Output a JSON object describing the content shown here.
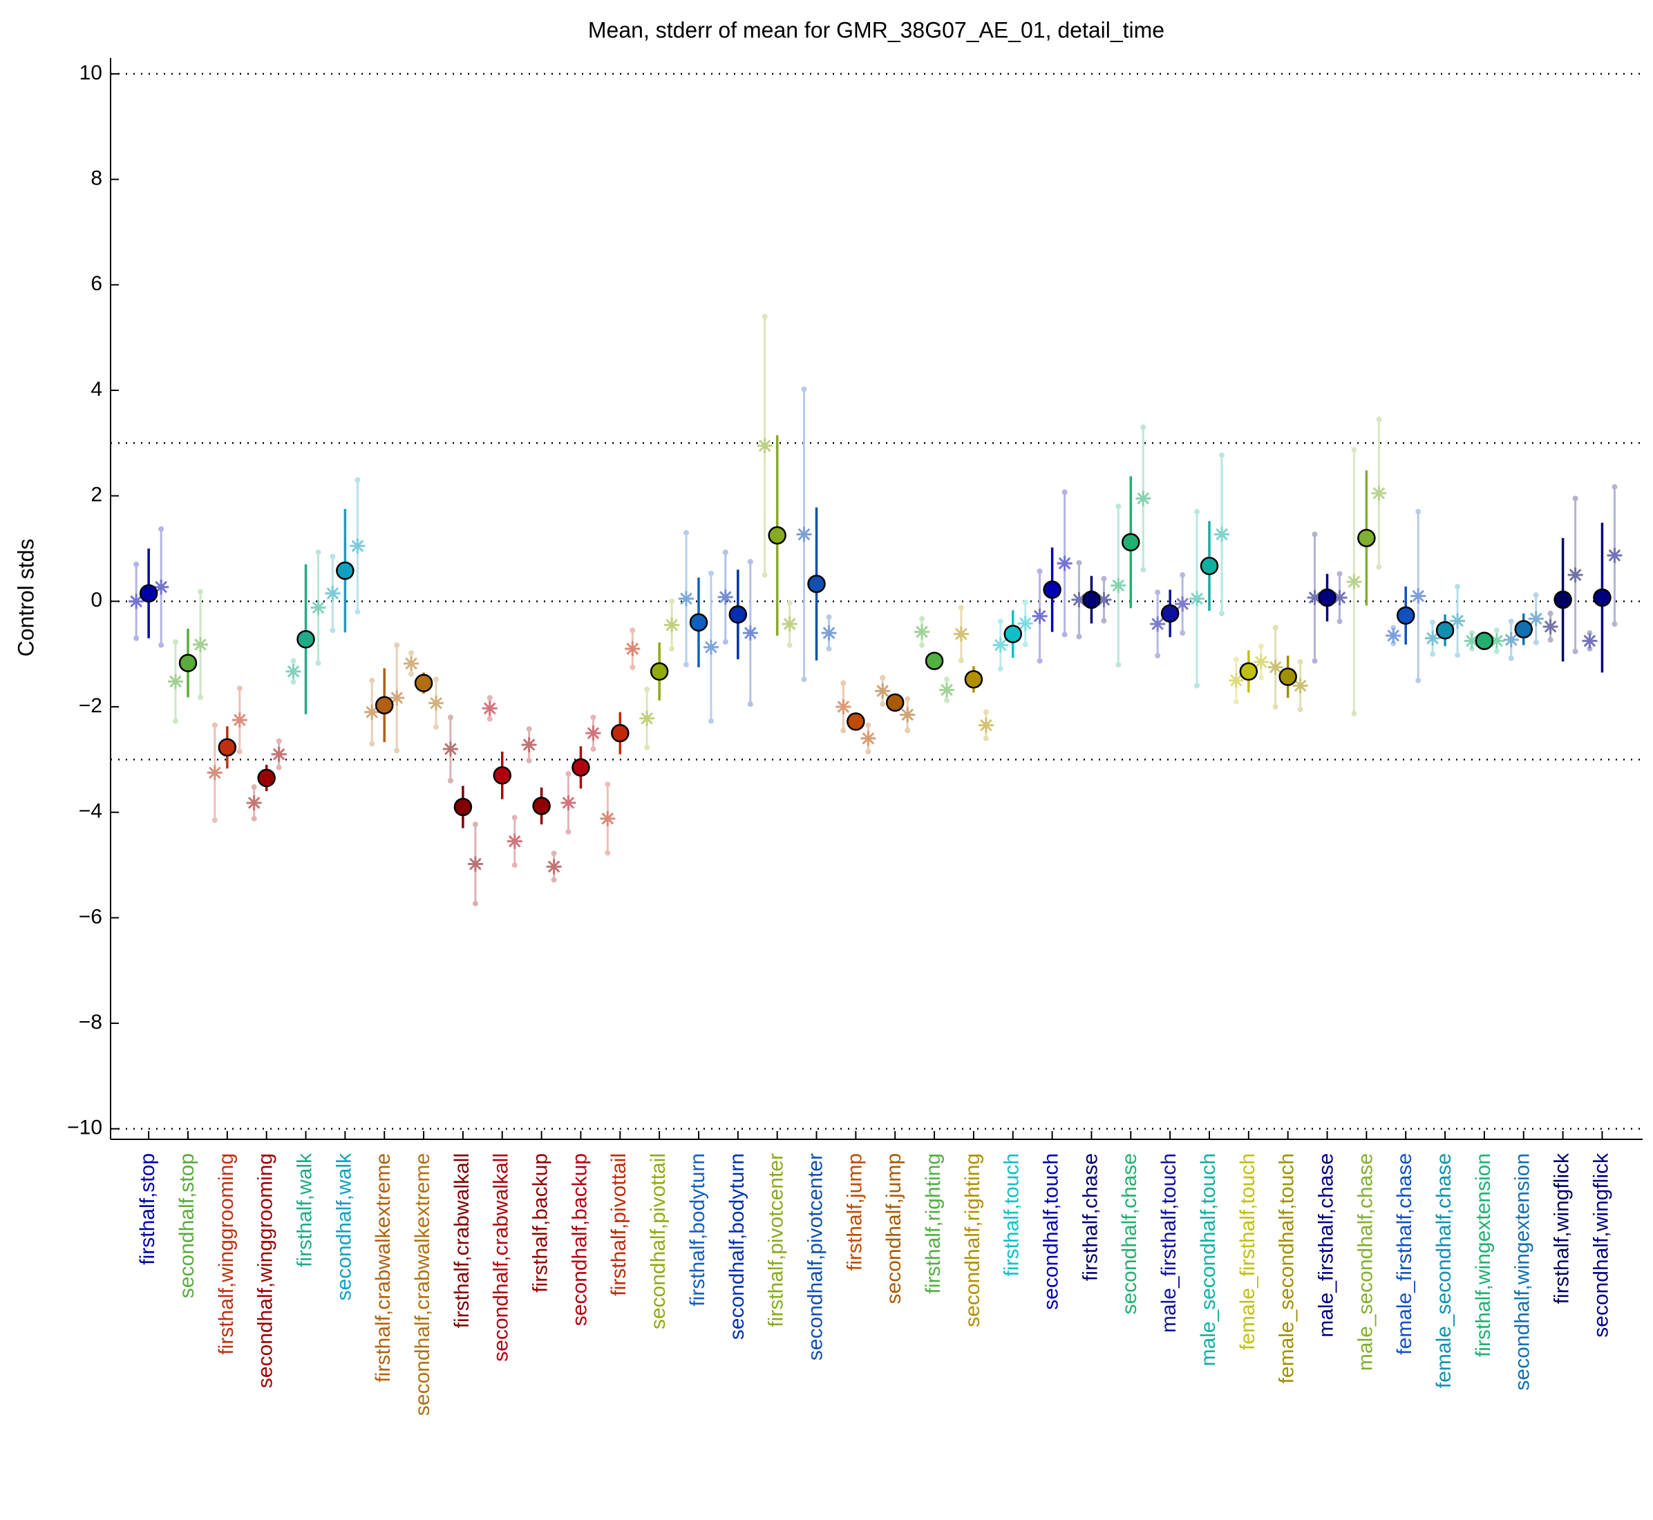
{
  "chart_data": {
    "type": "errorbar",
    "title": "Mean, stderr of mean for GMR_38G07_AE_01, detail_time",
    "ylabel": "Control stds",
    "categories": [
      "firsthalf,stop",
      "secondhalf,stop",
      "firsthalf,winggrooming",
      "secondhalf,winggrooming",
      "firsthalf,walk",
      "secondhalf,walk",
      "firsthalf,crabwalkextreme",
      "secondhalf,crabwalkextreme",
      "firsthalf,crabwalkall",
      "secondhalf,crabwalkall",
      "firsthalf,backup",
      "secondhalf,backup",
      "firsthalf,pivottail",
      "secondhalf,pivottail",
      "firsthalf,bodyturn",
      "secondhalf,bodyturn",
      "firsthalf,pivotcenter",
      "secondhalf,pivotcenter",
      "firsthalf,jump",
      "secondhalf,jump",
      "firsthalf,righting",
      "secondhalf,righting",
      "firsthalf,touch",
      "secondhalf,touch",
      "firsthalf,chase",
      "secondhalf,chase",
      "male_firsthalf,touch",
      "male_secondhalf,touch",
      "female_firsthalf,touch",
      "female_secondhalf,touch",
      "male_firsthalf,chase",
      "male_secondhalf,chase",
      "female_firsthalf,chase",
      "female_secondhalf,chase",
      "firsthalf,wingextension",
      "secondhalf,wingextension",
      "firsthalf,wingflick",
      "secondhalf,wingflick"
    ],
    "colors": [
      "#0000aa",
      "#5aaa3c",
      "#c03010",
      "#9a0000",
      "#20aa88",
      "#10a0c0",
      "#b06010",
      "#b07010",
      "#800000",
      "#b00010",
      "#900000",
      "#b00010",
      "#c02808",
      "#90aa10",
      "#1060c0",
      "#0030b0",
      "#88aa20",
      "#1050b0",
      "#c04a00",
      "#a85a00",
      "#50b040",
      "#b09000",
      "#10c0c8",
      "#0000b0",
      "#000070",
      "#20b070",
      "#1010a0",
      "#10b0a0",
      "#c0c010",
      "#a09000",
      "#000080",
      "#80b030",
      "#1050c0",
      "#1090b0",
      "#20b070",
      "#1070b0",
      "#000060",
      "#000080"
    ],
    "values": [
      0.15,
      -1.17,
      -2.77,
      -3.35,
      -0.72,
      0.58,
      -1.97,
      -1.55,
      -3.9,
      -3.3,
      -3.88,
      -3.15,
      -2.5,
      -1.33,
      -0.4,
      -0.25,
      1.25,
      0.33,
      -2.28,
      -1.92,
      -1.13,
      -1.48,
      -0.62,
      0.22,
      0.03,
      1.12,
      -0.23,
      0.67,
      -1.33,
      -1.43,
      0.07,
      1.2,
      -0.27,
      -0.55,
      -0.75,
      -0.53,
      0.03,
      0.07
    ],
    "errors": [
      0.85,
      0.65,
      0.4,
      0.25,
      1.42,
      1.17,
      0.7,
      0.2,
      0.4,
      0.45,
      0.35,
      0.4,
      0.4,
      0.55,
      0.85,
      0.85,
      1.9,
      1.45,
      0.1,
      0.1,
      0.05,
      0.25,
      0.45,
      0.8,
      0.45,
      1.25,
      0.45,
      0.85,
      0.4,
      0.4,
      0.45,
      1.28,
      0.55,
      0.3,
      0.1,
      0.3,
      1.17,
      1.42
    ],
    "left_values": [
      0.0,
      -1.52,
      -3.25,
      -3.82,
      -1.33,
      0.15,
      -2.1,
      -1.18,
      -2.8,
      -2.03,
      -2.72,
      -3.82,
      -4.12,
      -2.22,
      0.05,
      0.08,
      2.95,
      1.27,
      -2.0,
      -1.7,
      -0.58,
      -0.62,
      -0.83,
      -0.28,
      0.03,
      0.3,
      -0.43,
      0.05,
      -1.5,
      -1.25,
      0.07,
      0.37,
      -0.65,
      -0.7,
      -0.75,
      -0.73,
      -0.48,
      -0.75
    ],
    "left_errors": [
      0.7,
      0.75,
      0.9,
      0.3,
      0.2,
      0.7,
      0.6,
      0.2,
      0.6,
      0.2,
      0.3,
      0.55,
      0.65,
      0.55,
      1.25,
      0.85,
      2.45,
      2.75,
      0.45,
      0.25,
      0.25,
      0.5,
      0.45,
      0.85,
      0.7,
      1.5,
      0.6,
      1.65,
      0.4,
      0.75,
      1.2,
      2.5,
      0.15,
      0.3,
      0.15,
      0.35,
      0.25,
      0.15
    ],
    "right_values": [
      0.27,
      -0.82,
      -2.25,
      -2.9,
      -0.12,
      1.05,
      -1.83,
      -1.93,
      -4.98,
      -4.55,
      -5.03,
      -2.5,
      -0.9,
      -0.45,
      -0.87,
      -0.6,
      -0.43,
      -0.6,
      -2.6,
      -2.15,
      -1.68,
      -2.35,
      -0.42,
      0.72,
      0.03,
      1.95,
      -0.05,
      1.27,
      -1.15,
      -1.6,
      0.07,
      2.05,
      0.1,
      -0.37,
      -0.75,
      -0.33,
      0.5,
      0.87
    ],
    "right_errors": [
      1.1,
      1.0,
      0.6,
      0.25,
      1.05,
      1.25,
      1.0,
      0.45,
      0.75,
      0.45,
      0.25,
      0.3,
      0.35,
      0.45,
      1.4,
      1.35,
      0.4,
      0.3,
      0.25,
      0.3,
      0.2,
      0.25,
      0.4,
      1.35,
      0.4,
      1.35,
      0.55,
      1.5,
      0.3,
      0.45,
      0.45,
      1.4,
      1.6,
      0.65,
      0.2,
      0.45,
      1.45,
      1.3
    ],
    "ylim": [
      -10.2,
      10.3
    ],
    "yticks": [
      {
        "value": -10,
        "label": "−10"
      },
      {
        "value": -8,
        "label": "−8"
      },
      {
        "value": -6,
        "label": "−6"
      },
      {
        "value": -4,
        "label": "−4"
      },
      {
        "value": -2,
        "label": "−2"
      },
      0,
      2,
      4,
      6,
      8,
      10
    ],
    "reference_lines": [
      -10,
      -3,
      0,
      3,
      10
    ]
  }
}
